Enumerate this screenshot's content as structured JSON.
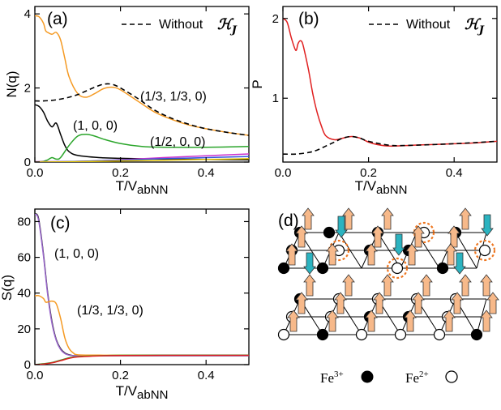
{
  "chart_data": [
    {
      "type": "line",
      "panel": "(a)",
      "ylabel": "N(q)",
      "xlabel_main": "T/V",
      "xlabel_sub": "abNN",
      "xlim": [
        0,
        0.5
      ],
      "ylim": [
        0,
        4.2
      ],
      "xticks": [
        "0.0",
        "0.2",
        "0.4"
      ],
      "yticks": [
        "0",
        "2",
        "4"
      ],
      "legend": {
        "label": "Without",
        "symbol": "ℋ",
        "symbol_sub": "J"
      },
      "annotations": [
        "(1/3, 1/3, 0)",
        "(1, 0, 0)",
        "(1/2, 0, 0)"
      ],
      "series": [
        {
          "label": "(1/3, 1/3, 0)",
          "color": "#f59a23",
          "style": "solid",
          "x": [
            0,
            0.01,
            0.02,
            0.025,
            0.03,
            0.04,
            0.05,
            0.06,
            0.07,
            0.08,
            0.1,
            0.12,
            0.14,
            0.16,
            0.18,
            0.2,
            0.24,
            0.28,
            0.32,
            0.36,
            0.4,
            0.45,
            0.5
          ],
          "y": [
            3.95,
            3.92,
            3.75,
            3.55,
            3.5,
            3.45,
            3.5,
            3.3,
            2.8,
            2.3,
            1.85,
            1.75,
            1.85,
            1.98,
            2.02,
            1.95,
            1.65,
            1.35,
            1.15,
            1.0,
            0.9,
            0.8,
            0.72
          ]
        },
        {
          "label": "Without ℋJ",
          "color": "#000000",
          "style": "dashed",
          "x": [
            0,
            0.02,
            0.05,
            0.08,
            0.1,
            0.12,
            0.14,
            0.16,
            0.18,
            0.2,
            0.24,
            0.28,
            0.32,
            0.36,
            0.4,
            0.45,
            0.5
          ],
          "y": [
            1.65,
            1.65,
            1.68,
            1.75,
            1.82,
            1.92,
            2.02,
            2.1,
            2.1,
            2.0,
            1.72,
            1.4,
            1.18,
            1.02,
            0.9,
            0.8,
            0.72
          ]
        },
        {
          "label": "(1, 0, 0)",
          "color": "#000000",
          "style": "solid",
          "x": [
            0,
            0.01,
            0.02,
            0.03,
            0.04,
            0.05,
            0.06,
            0.07,
            0.08,
            0.1,
            0.15,
            0.2,
            0.3,
            0.4,
            0.5
          ],
          "y": [
            1.55,
            1.5,
            1.35,
            1.1,
            0.95,
            1.05,
            0.75,
            0.45,
            0.28,
            0.18,
            0.12,
            0.1,
            0.08,
            0.07,
            0.06
          ]
        },
        {
          "label": "(1/2, 0, 0)",
          "color": "#2aa52a",
          "style": "solid",
          "x": [
            0,
            0.02,
            0.03,
            0.04,
            0.05,
            0.06,
            0.08,
            0.1,
            0.12,
            0.14,
            0.16,
            0.2,
            0.25,
            0.3,
            0.4,
            0.5
          ],
          "y": [
            0,
            0.02,
            0.06,
            0.12,
            0.08,
            0.12,
            0.45,
            0.7,
            0.75,
            0.7,
            0.62,
            0.5,
            0.42,
            0.4,
            0.4,
            0.42
          ]
        },
        {
          "label": "magenta",
          "color": "#cc33cc",
          "style": "solid",
          "x": [
            0,
            0.1,
            0.2,
            0.3,
            0.4,
            0.5
          ],
          "y": [
            0.01,
            0.02,
            0.06,
            0.12,
            0.17,
            0.22
          ]
        },
        {
          "label": "blue",
          "color": "#3355dd",
          "style": "solid",
          "x": [
            0,
            0.1,
            0.2,
            0.3,
            0.4,
            0.5
          ],
          "y": [
            0.0,
            0.02,
            0.05,
            0.09,
            0.12,
            0.15
          ]
        },
        {
          "label": "yellow",
          "color": "#e0c000",
          "style": "solid",
          "x": [
            0,
            0.1,
            0.2,
            0.3,
            0.4,
            0.5
          ],
          "y": [
            0.0,
            0.01,
            0.03,
            0.05,
            0.07,
            0.09
          ]
        }
      ]
    },
    {
      "type": "line",
      "panel": "(b)",
      "ylabel": "P",
      "xlabel_main": "T/V",
      "xlabel_sub": "abNN",
      "xlim": [
        0,
        0.5
      ],
      "ylim": [
        0.2,
        2.15
      ],
      "xticks": [
        "0.0",
        "0.2",
        "0.4"
      ],
      "yticks": [
        "1",
        "2"
      ],
      "legend": {
        "label": "Without",
        "symbol": "ℋ",
        "symbol_sub": "J"
      },
      "series": [
        {
          "label": "P",
          "color": "#e02020",
          "style": "solid",
          "x": [
            0,
            0.01,
            0.02,
            0.03,
            0.035,
            0.04,
            0.045,
            0.05,
            0.06,
            0.07,
            0.08,
            0.09,
            0.1,
            0.12,
            0.14,
            0.16,
            0.18,
            0.2,
            0.22,
            0.25,
            0.3,
            0.35,
            0.4,
            0.45,
            0.5
          ],
          "y": [
            2.0,
            1.95,
            1.75,
            1.6,
            1.68,
            1.72,
            1.7,
            1.6,
            1.35,
            1.05,
            0.82,
            0.65,
            0.53,
            0.48,
            0.5,
            0.52,
            0.5,
            0.45,
            0.42,
            0.4,
            0.41,
            0.42,
            0.43,
            0.44,
            0.46
          ]
        },
        {
          "label": "Without ℋJ",
          "color": "#000000",
          "style": "dashed",
          "x": [
            0,
            0.03,
            0.06,
            0.08,
            0.1,
            0.12,
            0.14,
            0.16,
            0.18,
            0.2,
            0.25,
            0.3,
            0.4,
            0.5
          ],
          "y": [
            0.3,
            0.3,
            0.32,
            0.35,
            0.4,
            0.45,
            0.5,
            0.52,
            0.5,
            0.46,
            0.41,
            0.41,
            0.43,
            0.46
          ]
        }
      ]
    },
    {
      "type": "line",
      "panel": "(c)",
      "ylabel": "S(q)",
      "xlabel_main": "T/V",
      "xlabel_sub": "abNN",
      "xlim": [
        0,
        0.5
      ],
      "ylim": [
        0,
        87
      ],
      "xticks": [
        "0.0",
        "0.2",
        "0.4"
      ],
      "yticks": [
        "0",
        "20",
        "40",
        "60",
        "80"
      ],
      "annotations": [
        "(1, 0, 0)",
        "(1/3, 1/3, 0)"
      ],
      "series": [
        {
          "label": "(1, 0, 0) black",
          "color": "#222222",
          "style": "solid",
          "x": [
            0,
            0.005,
            0.01,
            0.02,
            0.03,
            0.04,
            0.05,
            0.06,
            0.07,
            0.08,
            0.09,
            0.1,
            0.15,
            0.2,
            0.3,
            0.4,
            0.5
          ],
          "y": [
            84,
            84,
            80,
            62,
            40,
            24,
            14,
            9,
            6.5,
            5.5,
            5,
            5,
            5,
            5,
            5,
            5,
            5
          ]
        },
        {
          "label": "(1, 0, 0) purple",
          "color": "#9966cc",
          "style": "solid",
          "x": [
            0,
            0.005,
            0.01,
            0.02,
            0.03,
            0.04,
            0.05,
            0.06,
            0.07,
            0.08,
            0.09,
            0.1,
            0.15,
            0.2,
            0.3,
            0.4,
            0.5
          ],
          "y": [
            84,
            83.5,
            79,
            61,
            39,
            23,
            13.5,
            8.5,
            6.2,
            5.3,
            5,
            5,
            5,
            5,
            5,
            5,
            5
          ]
        },
        {
          "label": "(1/3, 1/3, 0)",
          "color": "#f59a23",
          "style": "solid",
          "x": [
            0,
            0.01,
            0.02,
            0.025,
            0.03,
            0.04,
            0.05,
            0.06,
            0.07,
            0.08,
            0.09,
            0.1,
            0.15,
            0.2,
            0.3,
            0.4,
            0.5
          ],
          "y": [
            38.5,
            38.5,
            37,
            35,
            35,
            35.5,
            34,
            26,
            15,
            9,
            6.5,
            5.5,
            5.3,
            5.3,
            5.3,
            5.3,
            5.3
          ]
        },
        {
          "label": "green",
          "color": "#2aa52a",
          "style": "solid",
          "x": [
            0,
            0.02,
            0.04,
            0.06,
            0.08,
            0.1,
            0.15,
            0.2,
            0.3,
            0.4,
            0.5
          ],
          "y": [
            0,
            0.5,
            1.2,
            2.5,
            3.8,
            4.5,
            5.0,
            5.2,
            5.3,
            5.3,
            5.3
          ]
        },
        {
          "label": "red",
          "color": "#e02020",
          "style": "solid",
          "x": [
            0,
            0.02,
            0.04,
            0.06,
            0.08,
            0.1,
            0.15,
            0.2,
            0.3,
            0.4,
            0.5
          ],
          "y": [
            0,
            0.3,
            1.0,
            2.2,
            3.5,
            4.3,
            4.9,
            5.1,
            5.2,
            5.2,
            5.2
          ]
        }
      ]
    }
  ],
  "panel_d": {
    "label": "(d)",
    "legend": [
      {
        "text": "Fe",
        "sup": "3+",
        "marker": "filled"
      },
      {
        "text": "Fe",
        "sup": "2+",
        "marker": "open"
      }
    ]
  }
}
